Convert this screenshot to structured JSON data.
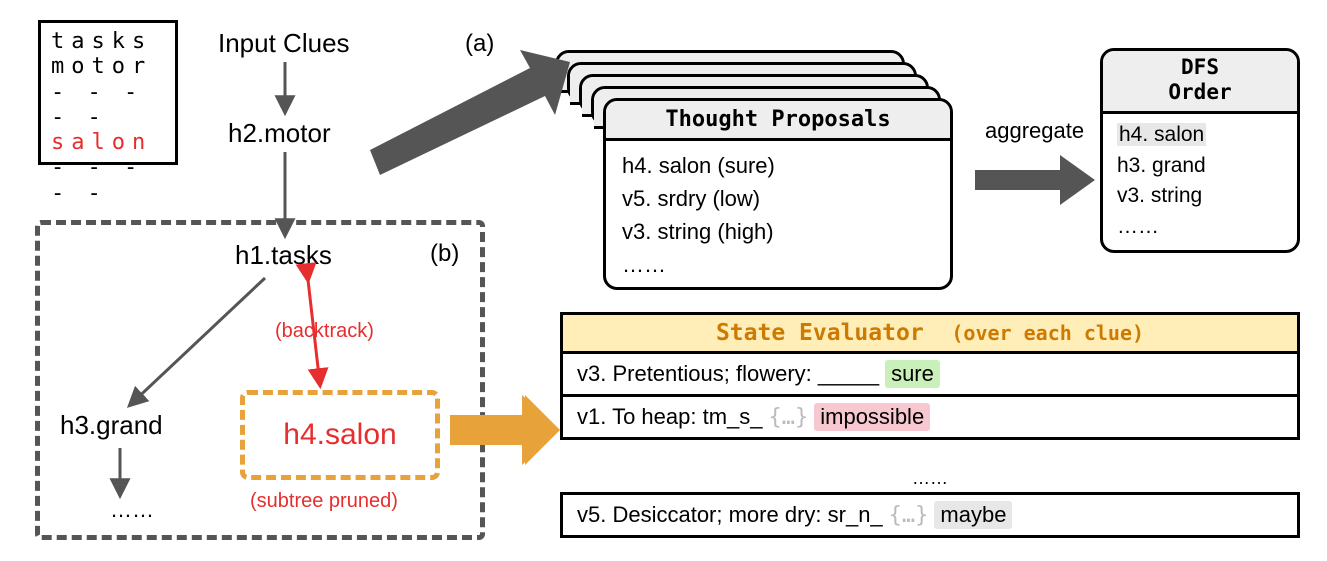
{
  "colors": {
    "red": "#e62e2e",
    "orange": "#e8a23a",
    "gray": "#555555",
    "headerFill": "#eeeeee",
    "evalHeader": "#ffeeb8",
    "green": "#c8f0b8",
    "pink": "#f7c8cf",
    "hlGray": "#e7e7e7"
  },
  "xword": {
    "r1": "tasks",
    "r2": "motor",
    "r3": "- - - - -",
    "r4": "salon",
    "r5": "- - - - -"
  },
  "tree": {
    "input": "Input Clues",
    "n1": "h2.motor",
    "n2": "h1.tasks",
    "leafL": "h3.grand",
    "leafR": "h4.salon",
    "dots": "……",
    "backtrack": "(backtrack)",
    "pruned": "(subtree pruned)"
  },
  "labels": {
    "a": "(a)",
    "b": "(b)",
    "aggregate": "aggregate"
  },
  "proposals": {
    "title": "Thought Proposals",
    "i1": "h4. salon (sure)",
    "i2": "v5. srdry (low)",
    "i3": "v3. string (high)",
    "dots": "……"
  },
  "dfs": {
    "title": "DFS Order",
    "i1": "h4. salon",
    "i2": "h3. grand",
    "i3": "v3. string",
    "dots": "……"
  },
  "eval": {
    "title": "State Evaluator",
    "subtitle": "(over each clue)",
    "r1_pre": "v3. Pretentious; flowery: _____ ",
    "r1_tag": "sure",
    "r2_pre": "v1. To heap: tm_s_ ",
    "r2_ghost": "{…}",
    "r2_tag": "impossible",
    "gap": "……",
    "r3_pre": "v5. Desiccator; more dry: sr_n_ ",
    "r3_ghost": "{…}",
    "r3_tag": "maybe"
  }
}
